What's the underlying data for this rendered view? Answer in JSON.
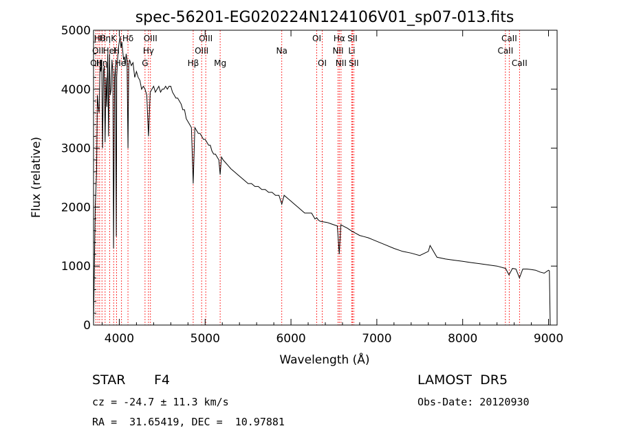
{
  "chart_data": {
    "type": "line",
    "title": "spec-56201-EG020224N124106V01_sp07-013.fits",
    "xlabel": "Wavelength (Å)",
    "ylabel": "Flux (relative)",
    "xlim": [
      3700,
      9100
    ],
    "ylim": [
      0,
      5000
    ],
    "x_ticks": [
      4000,
      5000,
      6000,
      7000,
      8000,
      9000
    ],
    "y_ticks": [
      0,
      1000,
      2000,
      3000,
      4000,
      5000
    ],
    "grid": false,
    "line_color": "#000000",
    "marker_color": "#ff0000",
    "series": [
      {
        "x": [
          3700,
          3710,
          3720,
          3735,
          3745,
          3755,
          3765,
          3775,
          3785,
          3795,
          3805,
          3815,
          3825,
          3835,
          3845,
          3855,
          3865,
          3875,
          3885,
          3895,
          3905,
          3915,
          3925,
          3933,
          3945,
          3955,
          3965,
          3970,
          3980,
          3990,
          4000,
          4010,
          4020,
          4030,
          4040,
          4050,
          4060,
          4070,
          4080,
          4090,
          4101,
          4110,
          4120,
          4140,
          4160,
          4180,
          4200,
          4220,
          4240,
          4260,
          4280,
          4300,
          4320,
          4340,
          4360,
          4380,
          4400,
          4420,
          4440,
          4460,
          4480,
          4500,
          4520,
          4540,
          4560,
          4580,
          4600,
          4620,
          4640,
          4660,
          4680,
          4700,
          4720,
          4740,
          4760,
          4780,
          4800,
          4820,
          4840,
          4861,
          4880,
          4900,
          4920,
          4940,
          4960,
          4980,
          5000,
          5020,
          5040,
          5060,
          5080,
          5100,
          5120,
          5140,
          5160,
          5175,
          5190,
          5210,
          5240,
          5270,
          5300,
          5340,
          5380,
          5420,
          5460,
          5500,
          5540,
          5580,
          5620,
          5660,
          5700,
          5740,
          5780,
          5820,
          5860,
          5893,
          5920,
          5960,
          6000,
          6040,
          6080,
          6120,
          6160,
          6200,
          6240,
          6280,
          6300,
          6320,
          6340,
          6380,
          6420,
          6460,
          6500,
          6540,
          6563,
          6580,
          6620,
          6660,
          6700,
          6750,
          6800,
          6850,
          6900,
          6950,
          7000,
          7100,
          7200,
          7300,
          7400,
          7500,
          7600,
          7620,
          7700,
          7800,
          7900,
          8000,
          8100,
          8200,
          8300,
          8400,
          8500,
          8540,
          8580,
          8620,
          8662,
          8700,
          8750,
          8800,
          8850,
          8900,
          8950,
          9000,
          9010,
          9020
        ],
        "y": [
          0,
          1000,
          2000,
          2600,
          3900,
          3700,
          3600,
          4400,
          4300,
          4500,
          3000,
          4300,
          4400,
          3100,
          4200,
          3700,
          4600,
          3200,
          4600,
          3900,
          4000,
          4500,
          4300,
          1300,
          4200,
          4400,
          1500,
          4200,
          4500,
          4700,
          4800,
          4900,
          4700,
          4800,
          4650,
          4500,
          4550,
          4400,
          4600,
          4500,
          3000,
          4400,
          4500,
          4400,
          4450,
          4200,
          4300,
          4200,
          4150,
          4000,
          4050,
          4000,
          3900,
          3200,
          3950,
          4000,
          4050,
          3950,
          4000,
          4050,
          3950,
          4000,
          4000,
          4050,
          4000,
          4050,
          4050,
          3950,
          3900,
          3850,
          3850,
          3800,
          3750,
          3650,
          3650,
          3500,
          3450,
          3400,
          3350,
          2400,
          3350,
          3300,
          3250,
          3250,
          3200,
          3150,
          3150,
          3100,
          3050,
          3050,
          2950,
          2900,
          2900,
          2850,
          2800,
          2550,
          2850,
          2800,
          2750,
          2700,
          2650,
          2600,
          2550,
          2500,
          2450,
          2400,
          2400,
          2350,
          2350,
          2300,
          2300,
          2250,
          2250,
          2200,
          2200,
          2050,
          2200,
          2150,
          2100,
          2050,
          2000,
          1950,
          1900,
          1900,
          1900,
          1800,
          1820,
          1780,
          1760,
          1750,
          1740,
          1720,
          1700,
          1680,
          1200,
          1700,
          1670,
          1640,
          1600,
          1560,
          1520,
          1500,
          1480,
          1450,
          1420,
          1360,
          1300,
          1250,
          1220,
          1180,
          1250,
          1350,
          1150,
          1120,
          1100,
          1080,
          1060,
          1040,
          1020,
          1000,
          960,
          850,
          960,
          950,
          800,
          950,
          950,
          940,
          930,
          900,
          880,
          930,
          920,
          0
        ]
      }
    ],
    "line_markers": [
      {
        "wavelength": 3727,
        "label": "OII",
        "row": 3
      },
      {
        "wavelength": 3750,
        "label": "OII",
        "row": 2
      },
      {
        "wavelength": 3771,
        "label": "Hθ",
        "row": 1
      },
      {
        "wavelength": 3798,
        "label": "Hη",
        "row": 3
      },
      {
        "wavelength": 3835,
        "label": "Hη",
        "row": 1
      },
      {
        "wavelength": 3889,
        "label": "HeI",
        "row": 2
      },
      {
        "wavelength": 3934,
        "label": "K",
        "row": 1
      },
      {
        "wavelength": 3969,
        "label": "H",
        "row": 2
      },
      {
        "wavelength": 4026,
        "label": "HeI",
        "row": 3
      },
      {
        "wavelength": 4101,
        "label": "Hδ",
        "row": 1
      },
      {
        "wavelength": 4300,
        "label": "G",
        "row": 3
      },
      {
        "wavelength": 4340,
        "label": "Hγ",
        "row": 2
      },
      {
        "wavelength": 4363,
        "label": "OIII",
        "row": 1
      },
      {
        "wavelength": 4861,
        "label": "Hβ",
        "row": 3
      },
      {
        "wavelength": 4959,
        "label": "OIII",
        "row": 2
      },
      {
        "wavelength": 5007,
        "label": "OIII",
        "row": 1
      },
      {
        "wavelength": 5175,
        "label": "Mg",
        "row": 3
      },
      {
        "wavelength": 5893,
        "label": "Na",
        "row": 2
      },
      {
        "wavelength": 6300,
        "label": "OI",
        "row": 1
      },
      {
        "wavelength": 6364,
        "label": "OI",
        "row": 3
      },
      {
        "wavelength": 6548,
        "label": "NII",
        "row": 2
      },
      {
        "wavelength": 6563,
        "label": "Hα",
        "row": 1
      },
      {
        "wavelength": 6583,
        "label": "NII",
        "row": 3
      },
      {
        "wavelength": 6708,
        "label": "Li",
        "row": 2
      },
      {
        "wavelength": 6716,
        "label": "SII",
        "row": 1
      },
      {
        "wavelength": 6731,
        "label": "SII",
        "row": 3
      },
      {
        "wavelength": 8498,
        "label": "CaII",
        "row": 2
      },
      {
        "wavelength": 8542,
        "label": "CaII",
        "row": 1
      },
      {
        "wavelength": 8662,
        "label": "CaII",
        "row": 3
      }
    ]
  },
  "info": {
    "class_label": "STAR",
    "subclass": "F4",
    "survey": "LAMOST  DR5",
    "cz": "cz = -24.7 ± 11.3 km/s",
    "obs_date": "Obs-Date: 20120930",
    "coords": "RA =  31.65419, DEC =  10.97881"
  }
}
